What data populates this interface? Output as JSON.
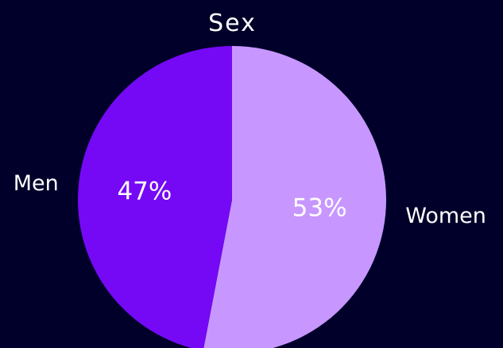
{
  "chart_data": {
    "type": "pie",
    "title": "Sex",
    "categories": [
      "Women",
      "Men"
    ],
    "values": [
      53,
      47
    ],
    "data_labels": [
      "53%",
      "47%"
    ],
    "colors": [
      "#c797ff",
      "#7509f5"
    ],
    "start_angle_deg": 0,
    "direction": "clockwise",
    "background": "#00002a"
  }
}
